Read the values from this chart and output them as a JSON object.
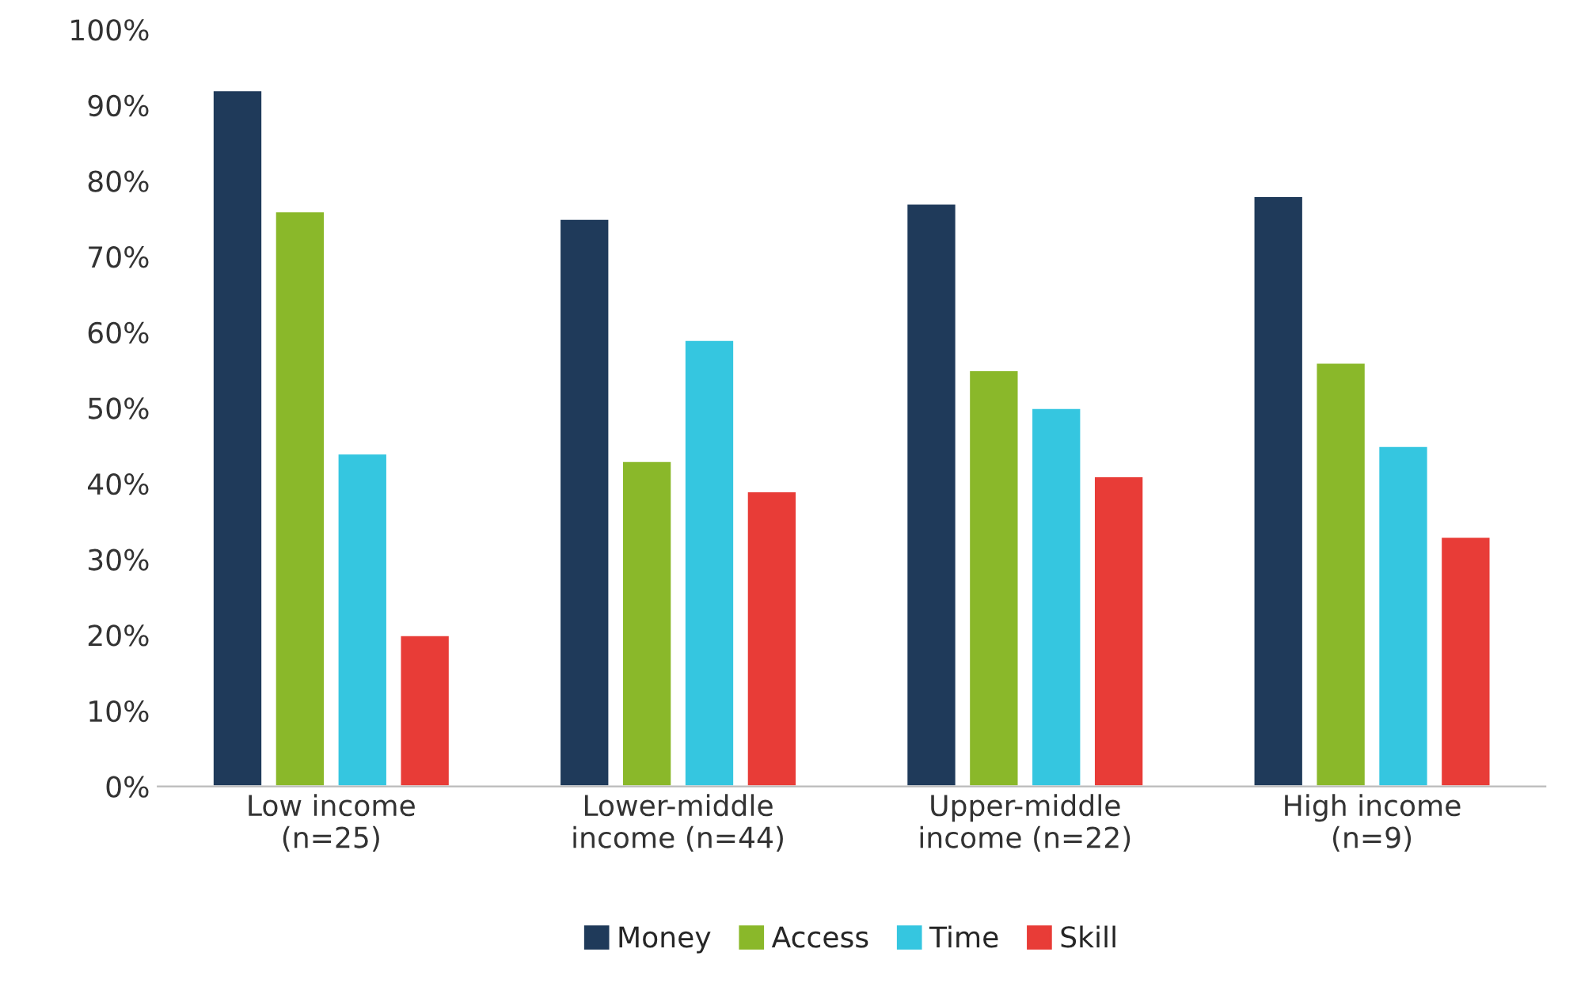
{
  "chart_data": {
    "type": "bar",
    "categories": [
      "Low income\n(n=25)",
      "Lower-middle\nincome (n=44)",
      "Upper-middle\nincome (n=22)",
      "High income\n(n=9)"
    ],
    "series": [
      {
        "name": "Money",
        "color": "#1f3a5a",
        "values": [
          92,
          75,
          77,
          78
        ]
      },
      {
        "name": "Access",
        "color": "#8ab82a",
        "values": [
          76,
          43,
          55,
          56
        ]
      },
      {
        "name": "Time",
        "color": "#35c6e0",
        "values": [
          44,
          59,
          50,
          45
        ]
      },
      {
        "name": "Skill",
        "color": "#e83c37",
        "values": [
          20,
          39,
          41,
          33
        ]
      }
    ],
    "ylim": [
      0,
      100
    ],
    "yticks": [
      {
        "value": 0,
        "label": "0%"
      },
      {
        "value": 10,
        "label": "10%"
      },
      {
        "value": 20,
        "label": "20%"
      },
      {
        "value": 30,
        "label": "30%"
      },
      {
        "value": 40,
        "label": "40%"
      },
      {
        "value": 50,
        "label": "50%"
      },
      {
        "value": 60,
        "label": "60%"
      },
      {
        "value": 70,
        "label": "70%"
      },
      {
        "value": 80,
        "label": "80%"
      },
      {
        "value": 90,
        "label": "90%"
      },
      {
        "value": 100,
        "label": "100%"
      }
    ],
    "grid": false,
    "legend": "bottom"
  }
}
